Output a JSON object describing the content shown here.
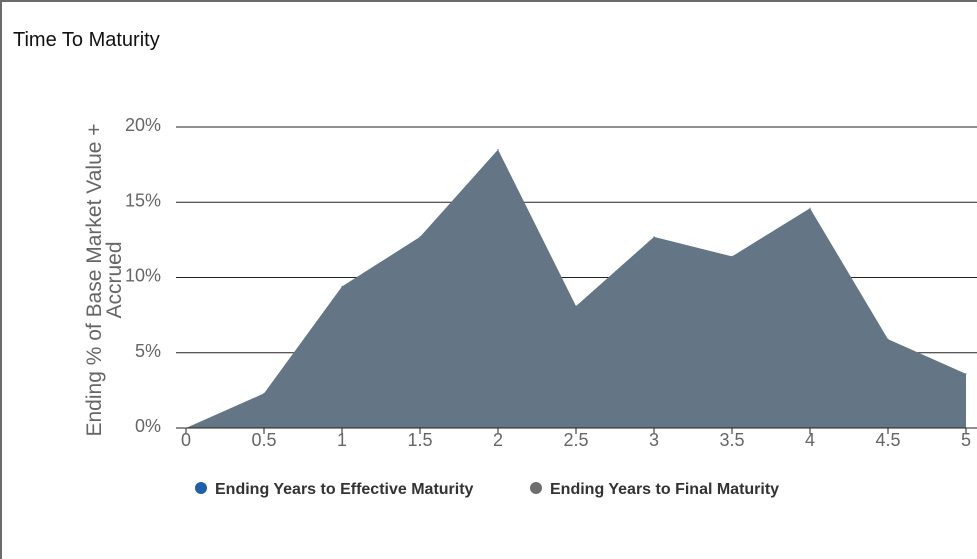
{
  "title": "Time To Maturity",
  "chart_data": {
    "type": "area",
    "title": "Time To Maturity",
    "xlabel": "",
    "ylabel": "Ending % of Base Market Value + Accrued",
    "xlim": [
      0,
      5
    ],
    "ylim": [
      0,
      20
    ],
    "x_ticks": [
      "0",
      "0.5",
      "1",
      "1.5",
      "2",
      "2.5",
      "3",
      "3.5",
      "4",
      "4.5",
      "5"
    ],
    "y_ticks": [
      "0%",
      "5%",
      "10%",
      "15%",
      "20%"
    ],
    "grid": true,
    "legend_position": "bottom",
    "series": [
      {
        "name": "Ending Years to Effective Maturity",
        "color": "#1f5fa8",
        "x": [],
        "values": []
      },
      {
        "name": "Ending Years to Final Maturity",
        "color": "#647585",
        "x": [
          0,
          0.5,
          1,
          1.5,
          2,
          2.5,
          3,
          3.5,
          4,
          4.5,
          5
        ],
        "values": [
          0,
          2.3,
          9.4,
          12.7,
          18.5,
          8.1,
          12.7,
          11.4,
          14.6,
          5.9,
          3.6
        ]
      }
    ],
    "legend_marker_colors": [
      "#1f5fa8",
      "#6e6e6e"
    ]
  }
}
